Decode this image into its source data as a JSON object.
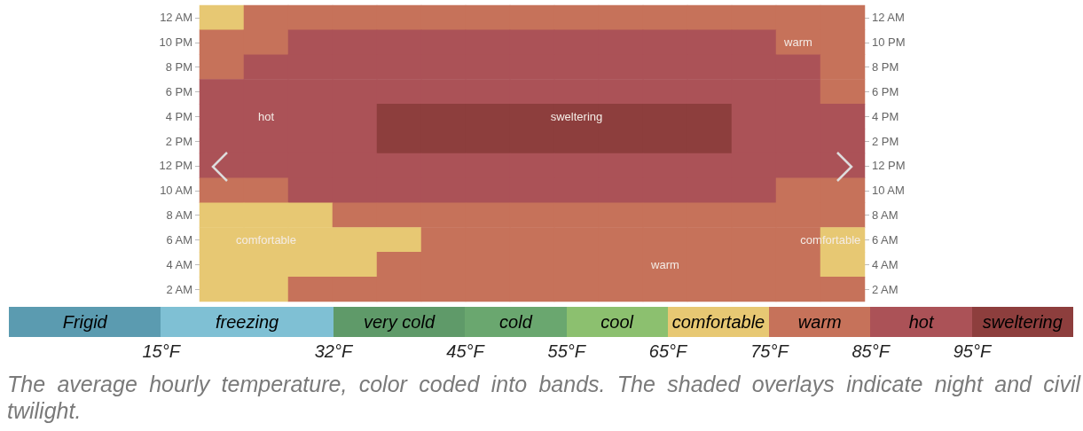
{
  "chart_data": {
    "type": "heatmap",
    "categories": [
      null,
      null,
      null,
      null,
      null,
      null,
      null,
      null,
      null,
      null,
      null,
      null,
      null,
      null,
      null
    ],
    "y_categories": [
      "12 AM",
      "10 PM",
      "8 PM",
      "6 PM",
      "4 PM",
      "2 PM",
      "12 PM",
      "10 AM",
      "8 AM",
      "6 AM",
      "4 AM",
      "2 AM"
    ],
    "y2_categories": [
      "12 AM",
      "10 PM",
      "8 PM",
      "6 PM",
      "4 PM",
      "2 PM",
      "12 PM",
      "10 AM",
      "8 AM",
      "6 AM",
      "4 AM",
      "2 AM"
    ],
    "cells": [
      [
        70,
        80,
        80,
        80,
        80,
        80,
        80,
        80,
        80,
        80,
        80,
        80,
        80,
        80,
        80
      ],
      [
        80,
        80,
        90,
        90,
        90,
        90,
        90,
        90,
        90,
        90,
        90,
        90,
        90,
        80,
        80
      ],
      [
        80,
        90,
        90,
        90,
        90,
        90,
        90,
        90,
        90,
        90,
        90,
        90,
        90,
        90,
        80
      ],
      [
        90,
        90,
        90,
        90,
        90,
        90,
        90,
        90,
        90,
        90,
        90,
        90,
        90,
        90,
        80
      ],
      [
        90,
        90,
        90,
        90,
        98,
        98,
        98,
        98,
        98,
        98,
        98,
        98,
        90,
        90,
        90
      ],
      [
        90,
        90,
        90,
        90,
        98,
        98,
        98,
        98,
        98,
        98,
        98,
        98,
        90,
        90,
        90
      ],
      [
        90,
        90,
        90,
        90,
        90,
        90,
        90,
        90,
        90,
        90,
        90,
        90,
        90,
        90,
        90
      ],
      [
        80,
        80,
        90,
        90,
        90,
        90,
        90,
        90,
        90,
        90,
        90,
        90,
        90,
        80,
        80
      ],
      [
        70,
        70,
        70,
        80,
        80,
        80,
        80,
        80,
        80,
        80,
        80,
        80,
        80,
        80,
        80
      ],
      [
        70,
        70,
        70,
        70,
        70,
        80,
        80,
        80,
        80,
        80,
        80,
        80,
        80,
        80,
        70
      ],
      [
        70,
        70,
        70,
        70,
        80,
        80,
        80,
        80,
        80,
        80,
        80,
        80,
        80,
        80,
        70
      ],
      [
        70,
        70,
        80,
        80,
        80,
        80,
        80,
        80,
        80,
        80,
        80,
        80,
        80,
        80,
        80
      ]
    ],
    "cell_labels": [
      [
        null,
        null,
        null,
        null,
        null,
        null,
        null,
        null,
        null,
        null,
        null,
        null,
        null,
        null,
        null
      ],
      [
        null,
        null,
        null,
        null,
        null,
        null,
        null,
        null,
        null,
        null,
        null,
        null,
        null,
        "warm",
        null
      ],
      [
        null,
        null,
        null,
        null,
        null,
        null,
        null,
        null,
        null,
        null,
        null,
        null,
        null,
        null,
        null
      ],
      [
        null,
        null,
        null,
        null,
        null,
        null,
        null,
        null,
        null,
        null,
        null,
        null,
        null,
        null,
        null
      ],
      [
        null,
        "hot",
        null,
        null,
        null,
        null,
        null,
        null,
        "sweltering",
        null,
        null,
        null,
        null,
        null,
        null
      ],
      [
        null,
        null,
        null,
        null,
        null,
        null,
        null,
        null,
        null,
        null,
        null,
        null,
        null,
        null,
        null
      ],
      [
        null,
        null,
        null,
        null,
        null,
        null,
        null,
        null,
        null,
        null,
        null,
        null,
        null,
        null,
        null
      ],
      [
        null,
        null,
        null,
        null,
        null,
        null,
        null,
        null,
        null,
        null,
        null,
        null,
        null,
        null,
        null
      ],
      [
        null,
        null,
        null,
        null,
        null,
        null,
        null,
        null,
        null,
        null,
        null,
        null,
        null,
        null,
        null
      ],
      [
        null,
        "comfortable",
        null,
        null,
        null,
        null,
        null,
        null,
        null,
        null,
        null,
        null,
        null,
        null,
        "comfortable"
      ],
      [
        null,
        null,
        null,
        null,
        null,
        null,
        null,
        null,
        null,
        null,
        "warm",
        null,
        null,
        null,
        null
      ],
      [
        null,
        null,
        null,
        null,
        null,
        null,
        null,
        null,
        null,
        null,
        null,
        null,
        null,
        null,
        null
      ]
    ],
    "clim": [
      0,
      105
    ],
    "cticks": [
      {
        "value": 15,
        "label": "15°F"
      },
      {
        "value": 32,
        "label": "32°F"
      },
      {
        "value": 45,
        "label": "45°F"
      },
      {
        "value": 55,
        "label": "55°F"
      },
      {
        "value": 65,
        "label": "65°F"
      },
      {
        "value": 75,
        "label": "75°F"
      },
      {
        "value": 85,
        "label": "85°F"
      },
      {
        "value": 95,
        "label": "95°F"
      }
    ],
    "colors": [
      "#5b9bb0",
      "#7fc0d4",
      "#5f9a69",
      "#6aa76f",
      "#8cc06f",
      "#e7c873",
      "#c6725a",
      "#ab5257",
      "#8d3e3d"
    ],
    "annotations": [
      "Frigid",
      "freezing",
      "very cold",
      "cold",
      "cool",
      "comfortable",
      "warm",
      "hot",
      "sweltering",
      "The average hourly temperature, color coded into bands. The shaded overlays indicate night and civil twilight."
    ]
  }
}
